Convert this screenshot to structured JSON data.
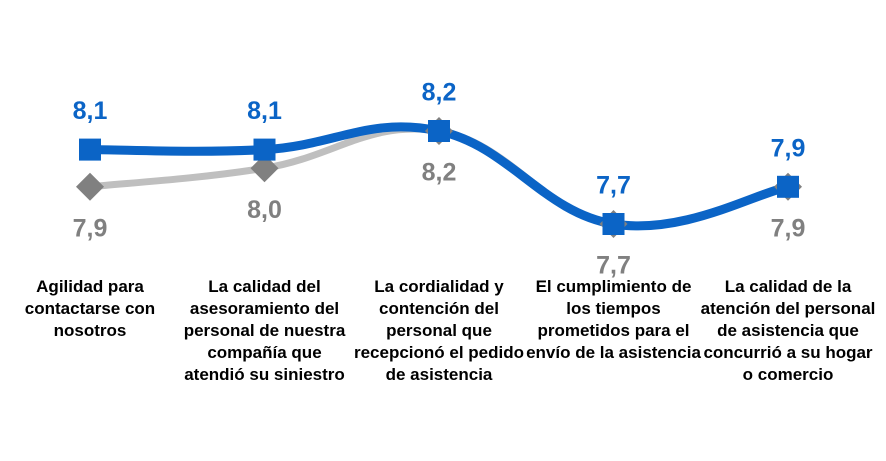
{
  "chart_data": {
    "type": "line",
    "categories": [
      "Agilidad para contactarse con nosotros",
      "La calidad del asesoramiento del personal de nuestra compañía que atendió su siniestro",
      "La cordialidad y contención del personal que recepcionó el pedido de asistencia",
      "El cumplimiento de los tiempos prometidos para el envío de la asistencia",
      "La calidad de la atención del personal de asistencia que concurrió a su hogar o comercio"
    ],
    "series": [
      {
        "color": "#bfbfbf",
        "marker_color": "#808080",
        "label_color": "#808080",
        "marker": "diamond",
        "label_position": "below",
        "values": [
          7.9,
          8.0,
          8.2,
          7.7,
          7.9
        ],
        "value_labels": [
          "7,9",
          "8,0",
          "8,2",
          "7,7",
          "7,9"
        ]
      },
      {
        "color": "#0b64c6",
        "marker_color": "#0b64c6",
        "label_color": "#0b64c6",
        "marker": "square",
        "label_position": "above",
        "values": [
          8.1,
          8.1,
          8.2,
          7.7,
          7.9
        ],
        "value_labels": [
          "8,1",
          "8,1",
          "8,2",
          "7,7",
          "7,9"
        ]
      }
    ]
  }
}
